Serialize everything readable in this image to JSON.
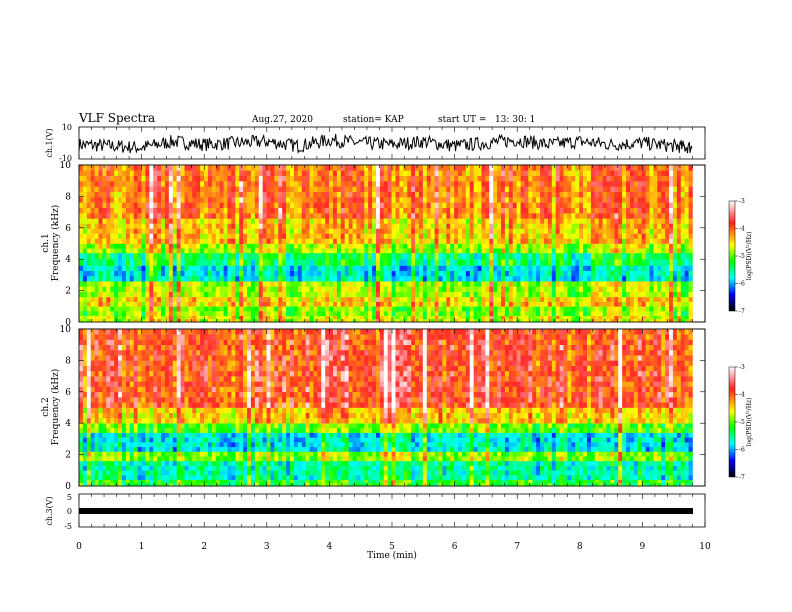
{
  "header": {
    "title": "VLF Spectra",
    "date": "Aug.27, 2020",
    "station": "station= KAP",
    "start": "start UT =   13: 30: 1"
  },
  "colorbar": {
    "label": "log(PSD)(V²/Hz)",
    "ticks": [
      -3,
      -4,
      -5,
      -6,
      -7
    ],
    "colors": [
      "#ffffff",
      "#ff2020",
      "#ffff00",
      "#00ff00",
      "#00ffff",
      "#0000ff",
      "#000000"
    ]
  },
  "chart_data": [
    {
      "type": "line",
      "panel": "ch1-waveform",
      "ylabel": "ch.1(V)",
      "ylim": [
        -10,
        10
      ],
      "yticks": [
        10,
        -10
      ],
      "x": [
        0,
        0.5,
        1,
        1.5,
        2,
        2.5,
        3,
        3.5,
        4,
        4.5,
        5,
        5.5,
        6,
        6.5,
        7,
        7.5,
        8,
        8.5,
        9,
        9.5,
        9.8
      ],
      "values": [
        -1,
        -2,
        -3,
        1,
        -1,
        0,
        1,
        -2,
        2,
        0,
        -1,
        1,
        -2,
        0,
        2,
        -1,
        1,
        -1,
        0,
        -2,
        -3
      ]
    },
    {
      "type": "heatmap",
      "panel": "ch1-spectrogram",
      "ylabel": "ch.1 Frequency (kHz)",
      "ylim": [
        0,
        10
      ],
      "yticks": [
        0,
        2,
        4,
        6,
        8,
        10
      ],
      "frequency_bands": [
        {
          "from": 0,
          "to": 0.4,
          "level": -4.5
        },
        {
          "from": 0.4,
          "to": 1.0,
          "level": -4.7
        },
        {
          "from": 1.0,
          "to": 1.6,
          "level": -4.3
        },
        {
          "from": 1.6,
          "to": 2.6,
          "level": -4.6
        },
        {
          "from": 2.6,
          "to": 3.6,
          "level": -5.6
        },
        {
          "from": 3.6,
          "to": 4.4,
          "level": -5.2
        },
        {
          "from": 4.4,
          "to": 5.0,
          "level": -4.6
        },
        {
          "from": 5.0,
          "to": 6.6,
          "level": -4.2
        },
        {
          "from": 6.6,
          "to": 10,
          "level": -3.9
        }
      ]
    },
    {
      "type": "heatmap",
      "panel": "ch2-spectrogram",
      "ylabel": "ch.2 Frequency (kHz)",
      "ylim": [
        0,
        10
      ],
      "yticks": [
        0,
        2,
        4,
        6,
        8,
        10
      ],
      "frequency_bands": [
        {
          "from": 0,
          "to": 0.4,
          "level": -5.0
        },
        {
          "from": 0.4,
          "to": 1.6,
          "level": -5.4
        },
        {
          "from": 1.6,
          "to": 2.2,
          "level": -4.7
        },
        {
          "from": 2.2,
          "to": 3.4,
          "level": -5.6
        },
        {
          "from": 3.4,
          "to": 4.0,
          "level": -4.8
        },
        {
          "from": 4.0,
          "to": 5.0,
          "level": -4.2
        },
        {
          "from": 5.0,
          "to": 10,
          "level": -3.7
        }
      ]
    },
    {
      "type": "line",
      "panel": "ch3-waveform",
      "ylabel": "ch.3(V)",
      "ylim": [
        -5,
        5
      ],
      "yticks": [
        5,
        0,
        -5
      ],
      "x": [
        0,
        9.8
      ],
      "values": [
        0,
        0
      ]
    }
  ],
  "xaxis": {
    "label": "Time (min)",
    "range": [
      0,
      10
    ],
    "ticks": [
      0,
      1,
      2,
      3,
      4,
      5,
      6,
      7,
      8,
      9,
      10
    ]
  }
}
